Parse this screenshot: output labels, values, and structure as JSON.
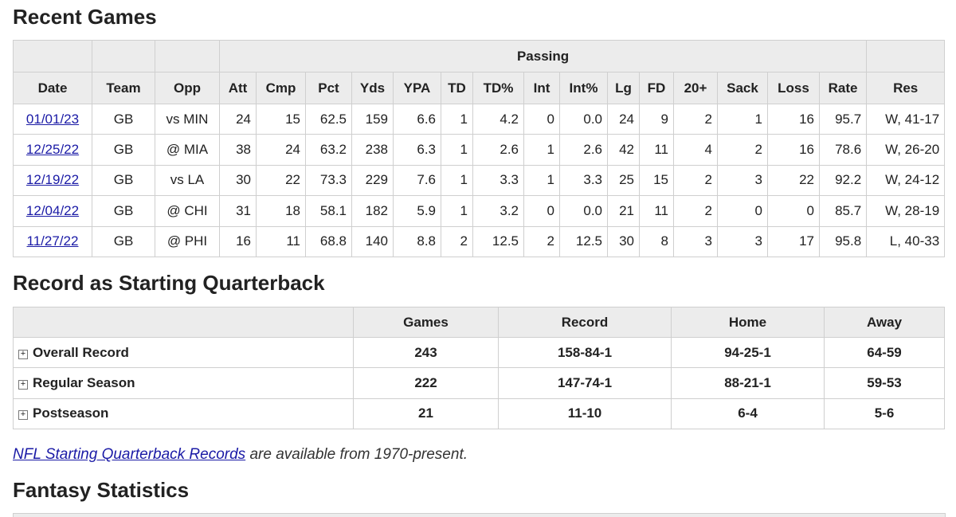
{
  "recent_games": {
    "title": "Recent Games",
    "group_header": "Passing",
    "columns": [
      "Date",
      "Team",
      "Opp",
      "Att",
      "Cmp",
      "Pct",
      "Yds",
      "YPA",
      "TD",
      "TD%",
      "Int",
      "Int%",
      "Lg",
      "FD",
      "20+",
      "Sack",
      "Loss",
      "Rate",
      "Res"
    ],
    "rows": [
      [
        "01/01/23",
        "GB",
        "vs MIN",
        "24",
        "15",
        "62.5",
        "159",
        "6.6",
        "1",
        "4.2",
        "0",
        "0.0",
        "24",
        "9",
        "2",
        "1",
        "16",
        "95.7",
        "W, 41-17"
      ],
      [
        "12/25/22",
        "GB",
        "@ MIA",
        "38",
        "24",
        "63.2",
        "238",
        "6.3",
        "1",
        "2.6",
        "1",
        "2.6",
        "42",
        "11",
        "4",
        "2",
        "16",
        "78.6",
        "W, 26-20"
      ],
      [
        "12/19/22",
        "GB",
        "vs LA",
        "30",
        "22",
        "73.3",
        "229",
        "7.6",
        "1",
        "3.3",
        "1",
        "3.3",
        "25",
        "15",
        "2",
        "3",
        "22",
        "92.2",
        "W, 24-12"
      ],
      [
        "12/04/22",
        "GB",
        "@ CHI",
        "31",
        "18",
        "58.1",
        "182",
        "5.9",
        "1",
        "3.2",
        "0",
        "0.0",
        "21",
        "11",
        "2",
        "0",
        "0",
        "85.7",
        "W, 28-19"
      ],
      [
        "11/27/22",
        "GB",
        "@ PHI",
        "16",
        "11",
        "68.8",
        "140",
        "8.8",
        "2",
        "12.5",
        "2",
        "12.5",
        "30",
        "8",
        "3",
        "3",
        "17",
        "95.8",
        "L, 40-33"
      ]
    ]
  },
  "record": {
    "title": "Record as Starting Quarterback",
    "columns": [
      "Games",
      "Record",
      "Home",
      "Away"
    ],
    "rows": [
      {
        "label": "Overall Record",
        "values": [
          "243",
          "158-84-1",
          "94-25-1",
          "64-59"
        ]
      },
      {
        "label": "Regular Season",
        "values": [
          "222",
          "147-74-1",
          "88-21-1",
          "59-53"
        ]
      },
      {
        "label": "Postseason",
        "values": [
          "21",
          "11-10",
          "6-4",
          "5-6"
        ]
      }
    ]
  },
  "note": {
    "link": "NFL Starting Quarterback Records",
    "text": "are available from 1970-present."
  },
  "fantasy": {
    "title": "Fantasy Statistics"
  }
}
